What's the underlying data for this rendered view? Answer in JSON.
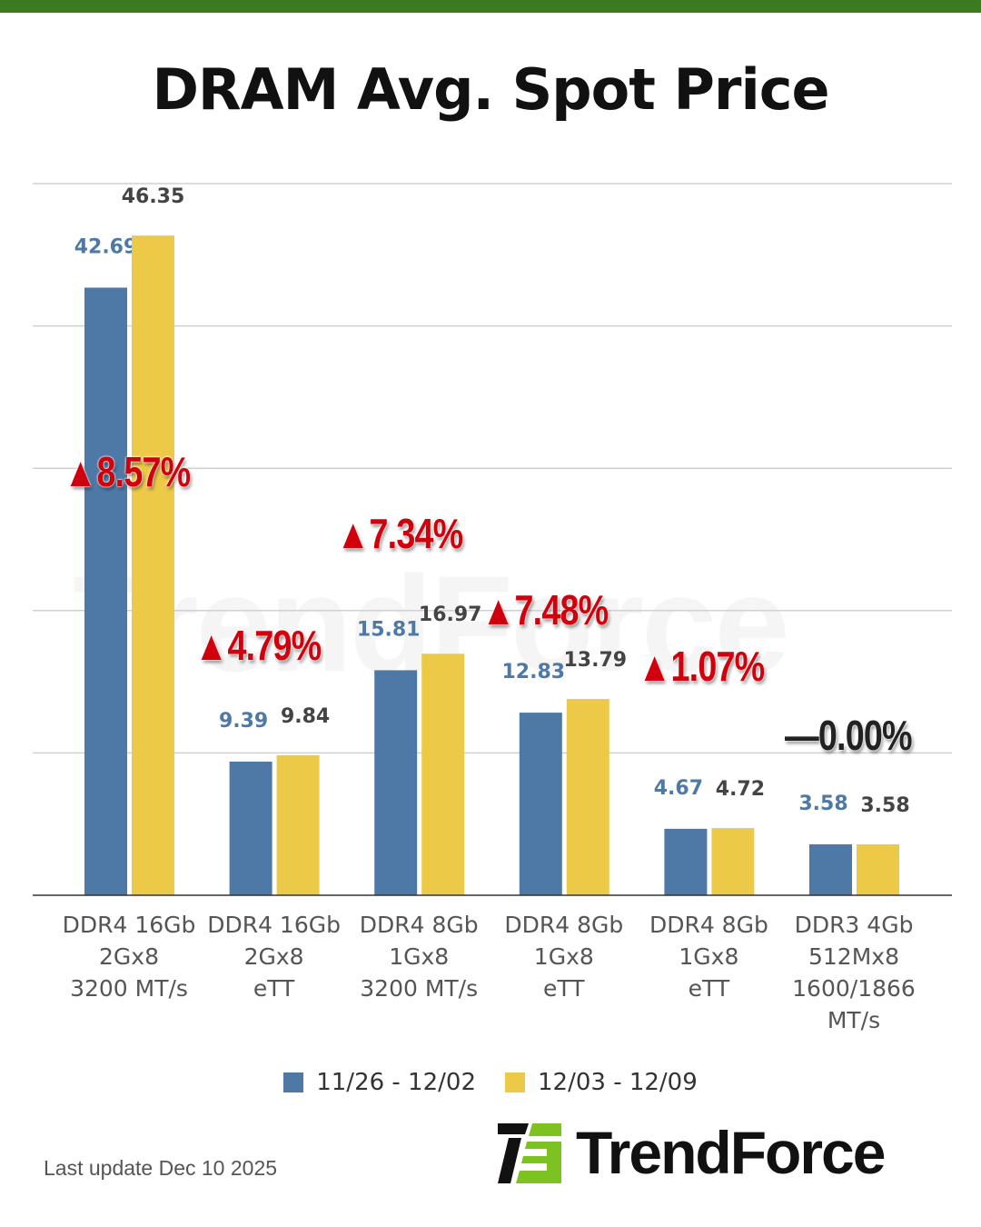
{
  "title": "DRAM Avg. Spot Price",
  "chart_data": {
    "type": "bar",
    "categories": [
      [
        "DDR4 16Gb",
        "2Gx8",
        "3200 MT/s"
      ],
      [
        "DDR4 16Gb",
        "2Gx8",
        "eTT"
      ],
      [
        "DDR4 8Gb",
        "1Gx8",
        "3200 MT/s"
      ],
      [
        "DDR4 8Gb",
        "1Gx8",
        "eTT"
      ],
      [
        "DDR4 8Gb",
        "1Gx8",
        "eTT"
      ],
      [
        "DDR3 4Gb",
        "512Mx8",
        "1600/1866",
        "MT/s"
      ]
    ],
    "series": [
      {
        "name": "11/26 - 12/02",
        "color": "#4e79a7",
        "values": [
          42.69,
          9.39,
          15.81,
          12.83,
          4.67,
          3.58
        ]
      },
      {
        "name": "12/03 - 12/09",
        "color": "#edc948",
        "values": [
          46.35,
          9.84,
          16.97,
          13.79,
          4.72,
          3.58
        ]
      }
    ],
    "changes": [
      "▲8.57%",
      "▲4.79%",
      "▲7.34%",
      "▲7.48%",
      "▲1.07%",
      "—0.00%"
    ],
    "ylim": [
      0,
      50
    ],
    "yticks": [
      0,
      10,
      20,
      30,
      40,
      50
    ],
    "grid": true,
    "legend_position": "bottom",
    "xlabel": "",
    "ylabel": ""
  },
  "footer": {
    "last_update": "Last update Dec 10 2025",
    "logo_text": "TrendForce"
  },
  "colors": {
    "accent_bar": "#3b7a20",
    "change_up": "#d0000c",
    "logo_green": "#7cc221"
  }
}
